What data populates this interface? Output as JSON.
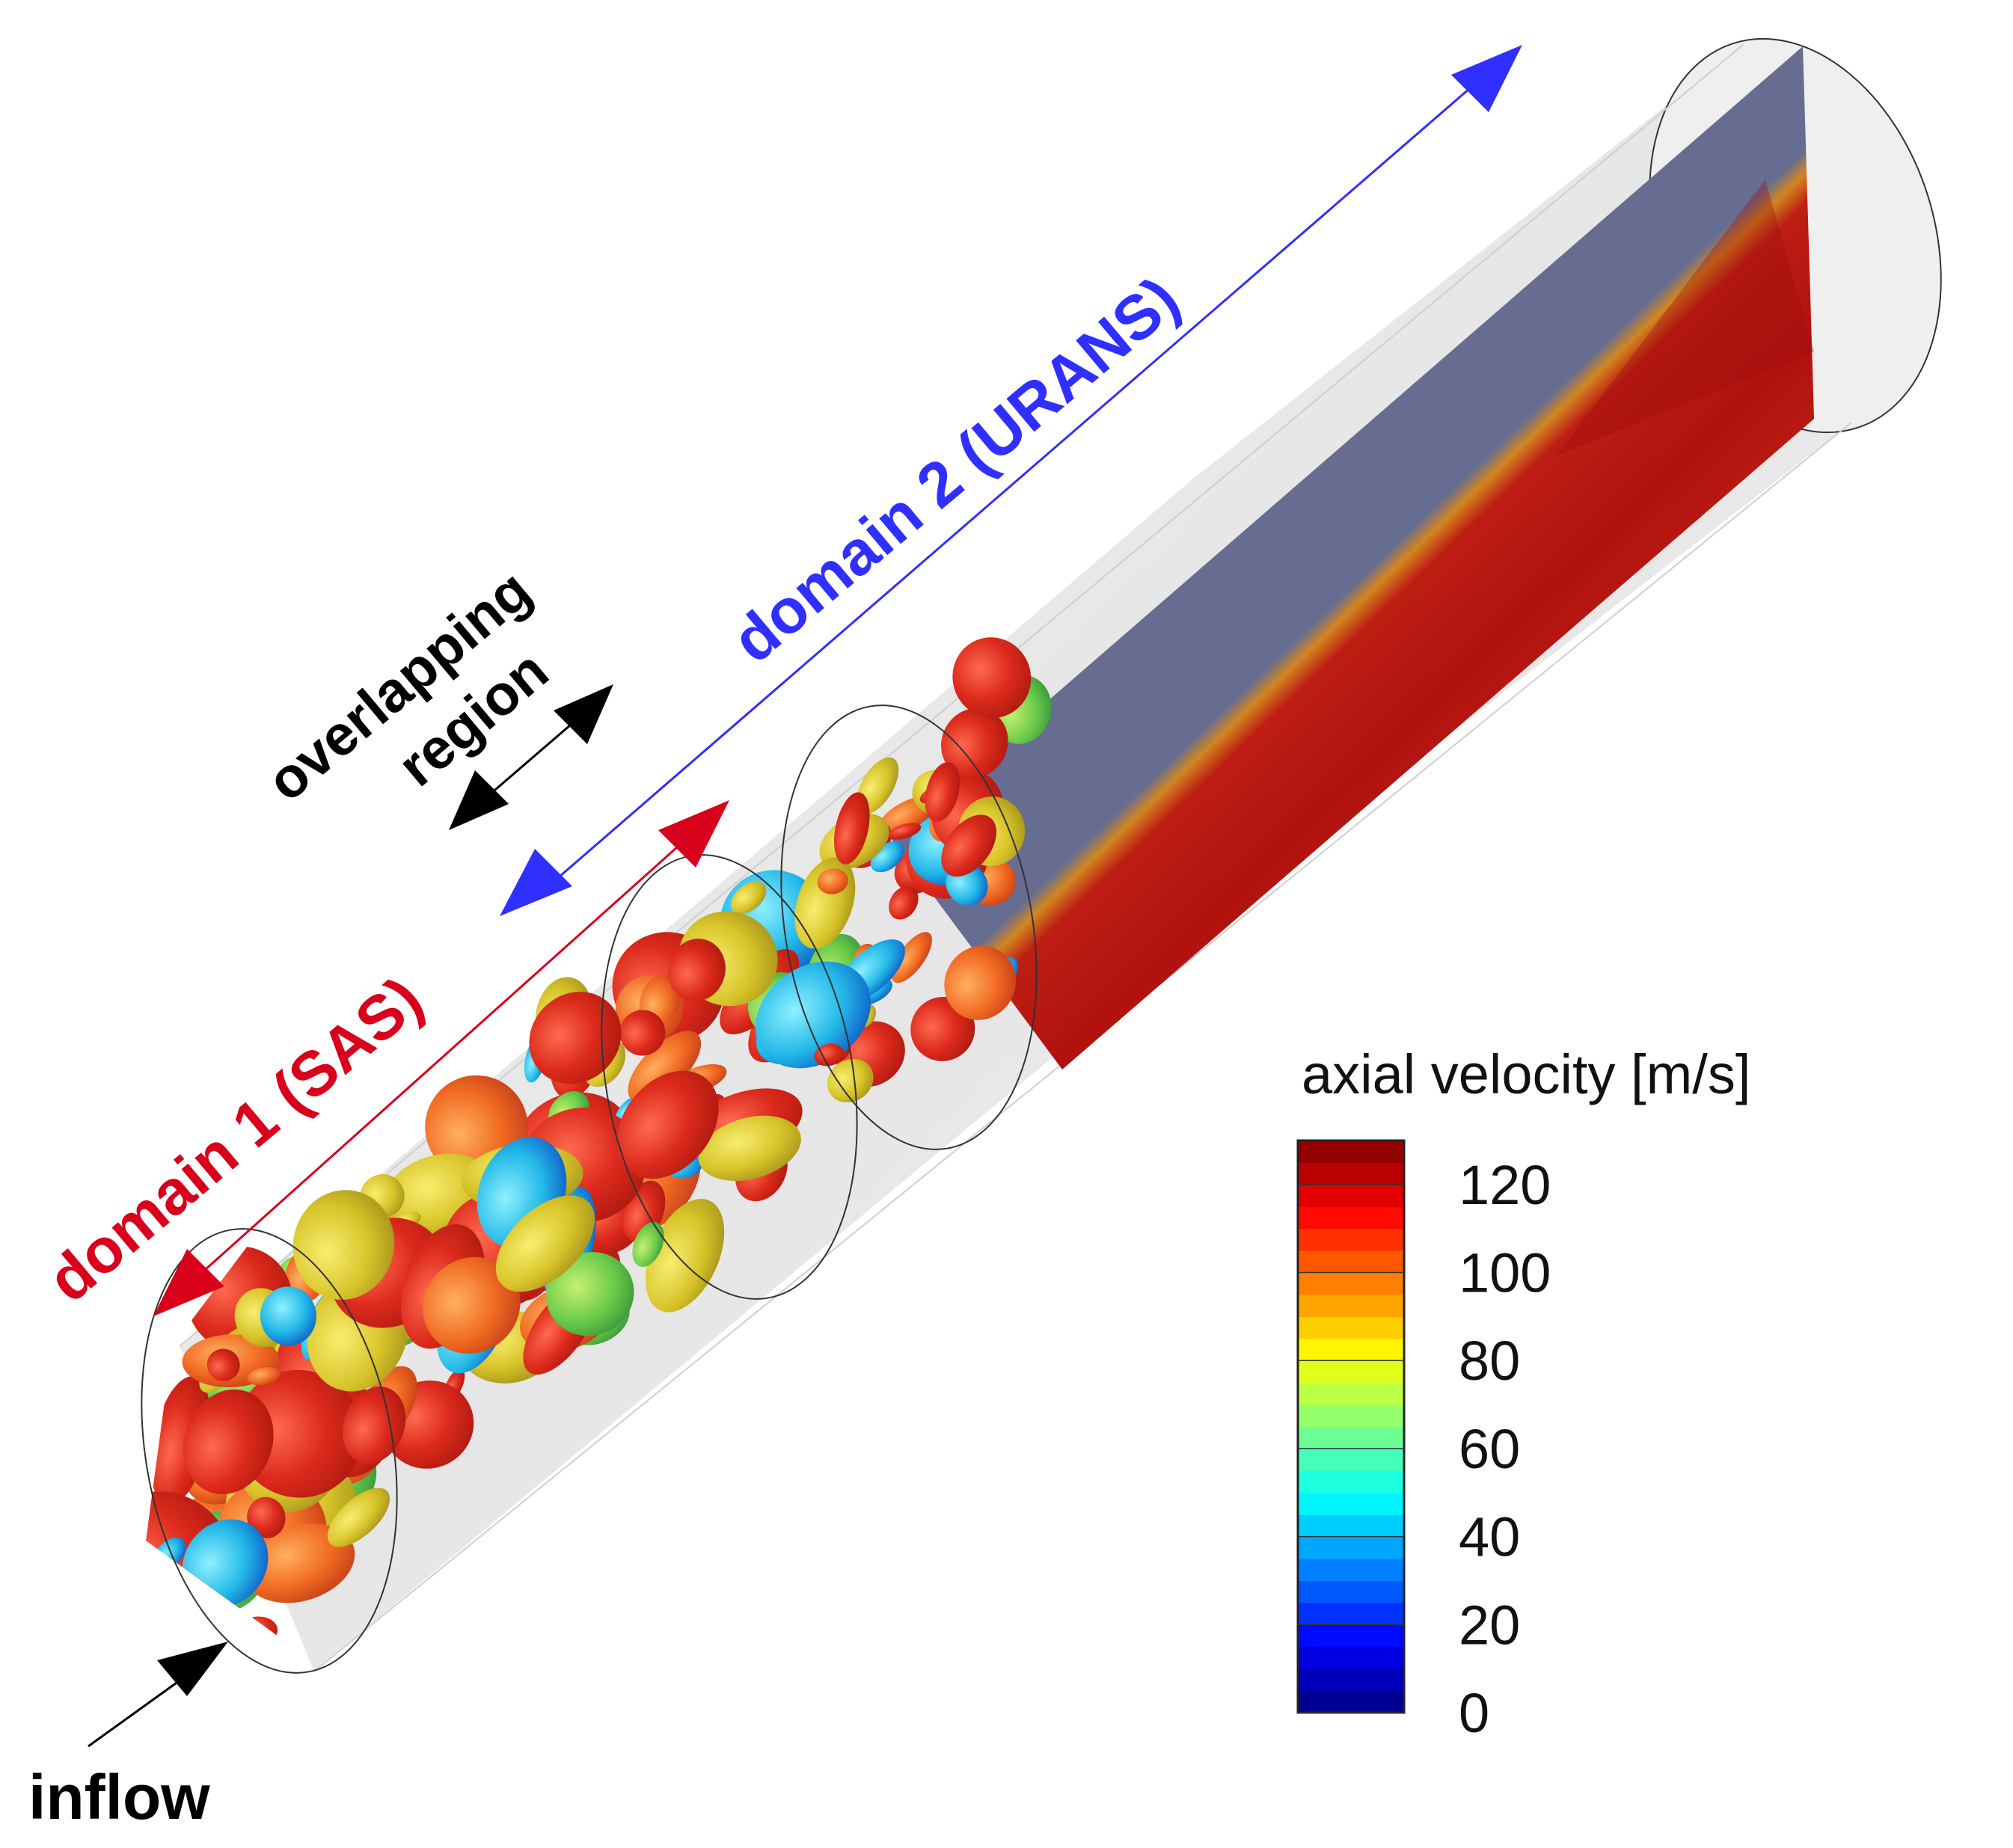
{
  "labels": {
    "domain1": "domain 1 (SAS)",
    "domain2": "domain 2 (URANS)",
    "overlap_line1": "overlapping",
    "overlap_line2": "region",
    "inflow": "inflow"
  },
  "colorbar": {
    "title": "axial velocity [m/s]",
    "min": 0,
    "max": 130,
    "ticks": [
      "0",
      "20",
      "40",
      "60",
      "80",
      "100",
      "120"
    ],
    "tick_values": [
      0,
      20,
      40,
      60,
      80,
      100,
      120
    ],
    "levels": 26,
    "colormap": [
      "#00007f",
      "#0000ff",
      "#007fff",
      "#00ffff",
      "#7fff7f",
      "#ffff00",
      "#ff7f00",
      "#ff0000",
      "#7f0000"
    ]
  },
  "colors": {
    "domain1": "#d9001b",
    "domain2": "#2f2fff",
    "overlap": "#000000",
    "cylinder_fill": "#ebebeb",
    "core_flow": "#b3100f"
  }
}
